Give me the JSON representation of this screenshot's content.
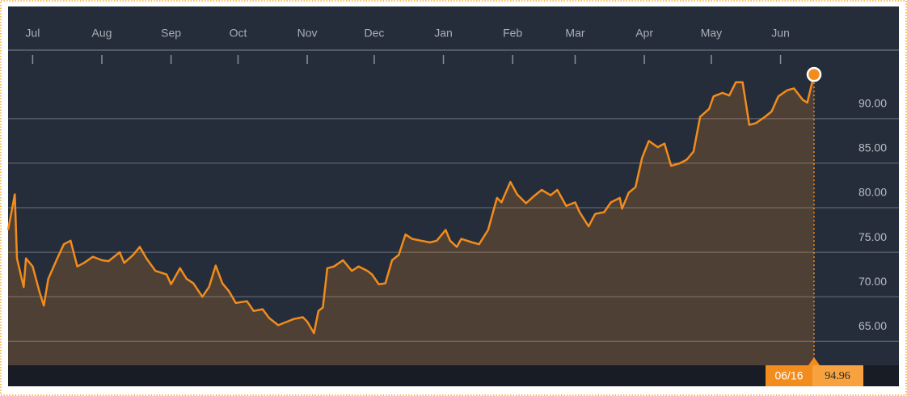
{
  "chart_data": {
    "type": "area",
    "x": [
      "06/20",
      "06/23",
      "06/24",
      "06/27",
      "06/28",
      "07/01",
      "07/04",
      "07/06",
      "07/08",
      "07/12",
      "07/15",
      "07/18",
      "07/21",
      "07/24",
      "07/28",
      "08/01",
      "08/04",
      "08/09",
      "08/11",
      "08/15",
      "08/18",
      "08/21",
      "08/25",
      "08/30",
      "09/01",
      "09/05",
      "09/08",
      "09/11",
      "09/15",
      "09/18",
      "09/21",
      "09/24",
      "09/27",
      "09/30",
      "10/05",
      "10/08",
      "10/12",
      "10/15",
      "10/19",
      "10/23",
      "10/26",
      "10/30",
      "11/01",
      "11/04",
      "11/06",
      "11/08",
      "11/10",
      "11/13",
      "11/17",
      "11/21",
      "11/24",
      "11/28",
      "11/30",
      "12/03",
      "12/06",
      "12/09",
      "12/12",
      "12/15",
      "12/18",
      "12/22",
      "12/26",
      "12/29",
      "01/02",
      "01/04",
      "01/07",
      "01/09",
      "01/14",
      "01/17",
      "01/21",
      "01/25",
      "01/27",
      "01/31",
      "02/03",
      "02/07",
      "02/11",
      "02/14",
      "02/18",
      "02/21",
      "02/25",
      "03/01",
      "03/03",
      "03/07",
      "03/10",
      "03/14",
      "03/17",
      "03/21",
      "03/22",
      "03/25",
      "03/28",
      "03/31",
      "04/03",
      "04/07",
      "04/10",
      "04/13",
      "04/17",
      "04/20",
      "04/23",
      "04/26",
      "04/30",
      "05/02",
      "05/06",
      "05/09",
      "05/12",
      "05/15",
      "05/18",
      "05/21",
      "05/25",
      "05/28",
      "05/31",
      "06/04",
      "06/07",
      "06/11",
      "06/13",
      "06/16"
    ],
    "series": [
      {
        "color": "#f28c1c",
        "values": [
          77.5,
          81.5,
          74.3,
          71.1,
          74.3,
          73.4,
          70.6,
          69.0,
          72.0,
          74.3,
          75.9,
          76.3,
          73.4,
          73.8,
          74.5,
          74.1,
          74.0,
          75.0,
          73.8,
          74.7,
          75.6,
          74.3,
          72.9,
          72.5,
          71.4,
          73.2,
          72.0,
          71.5,
          70.0,
          71.1,
          73.5,
          71.5,
          70.6,
          69.3,
          69.5,
          68.4,
          68.6,
          67.6,
          66.8,
          67.2,
          67.5,
          67.7,
          67.2,
          65.9,
          68.4,
          68.8,
          73.2,
          73.4,
          74.1,
          72.9,
          73.4,
          72.9,
          72.5,
          71.4,
          71.5,
          74.1,
          74.7,
          77.0,
          76.5,
          76.3,
          76.1,
          76.3,
          77.5,
          76.3,
          75.6,
          76.5,
          76.1,
          75.9,
          77.5,
          81.1,
          80.6,
          82.9,
          81.5,
          80.5,
          81.4,
          82.0,
          81.4,
          82.0,
          80.2,
          80.6,
          79.5,
          77.9,
          79.3,
          79.5,
          80.6,
          81.1,
          79.9,
          81.7,
          82.3,
          85.6,
          87.5,
          86.8,
          87.2,
          84.7,
          85.0,
          85.4,
          86.3,
          90.2,
          91.1,
          92.5,
          92.9,
          92.6,
          94.1,
          94.1,
          89.3,
          89.5,
          90.2,
          90.8,
          92.5,
          93.2,
          93.4,
          92.1,
          91.8,
          94.96
        ]
      }
    ],
    "xticks": [
      {
        "value": "07/01",
        "label": "Jul"
      },
      {
        "value": "08/01",
        "label": "Aug"
      },
      {
        "value": "09/01",
        "label": "Sep"
      },
      {
        "value": "10/01",
        "label": "Oct"
      },
      {
        "value": "11/01",
        "label": "Nov"
      },
      {
        "value": "12/01",
        "label": "Dec"
      },
      {
        "value": "01/01",
        "label": "Jan"
      },
      {
        "value": "02/01",
        "label": "Feb"
      },
      {
        "value": "03/01",
        "label": "Mar"
      },
      {
        "value": "04/01",
        "label": "Apr"
      },
      {
        "value": "05/01",
        "label": "May"
      },
      {
        "value": "06/01",
        "label": "Jun"
      }
    ],
    "ylim": [
      62.3,
      97.7
    ],
    "yticks": [
      {
        "value": 65,
        "label": "65.00"
      },
      {
        "value": 70,
        "label": "70.00"
      },
      {
        "value": 75,
        "label": "75.00"
      },
      {
        "value": 80,
        "label": "80.00"
      },
      {
        "value": 85,
        "label": "85.00"
      },
      {
        "value": 90,
        "label": "90.00"
      }
    ],
    "grid": true
  }
}
